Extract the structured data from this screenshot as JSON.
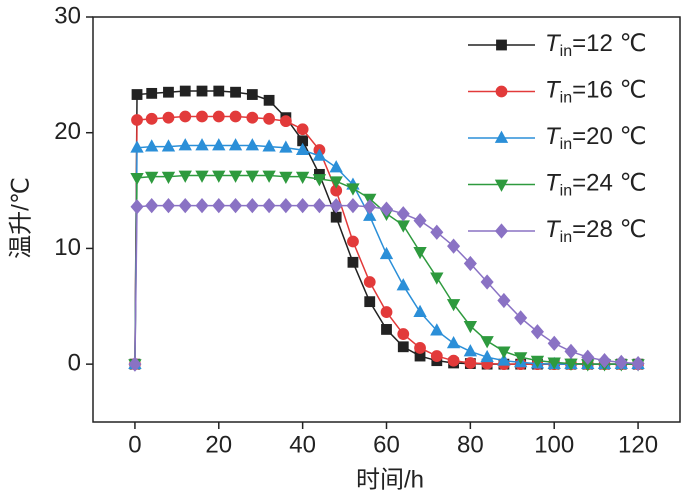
{
  "chart_data": {
    "type": "line",
    "x_label": "时间/h",
    "y_label": "温升/℃",
    "x": [
      0,
      0.5,
      4,
      8,
      12,
      16,
      20,
      24,
      28,
      32,
      36,
      40,
      44,
      48,
      52,
      56,
      60,
      64,
      68,
      72,
      76,
      80,
      84,
      88,
      92,
      96,
      100,
      104,
      108,
      112,
      116,
      120
    ],
    "series": [
      {
        "name": "Tin=12 ℃",
        "color": "#222222",
        "marker": "square",
        "values": [
          0,
          23.3,
          23.4,
          23.5,
          23.6,
          23.6,
          23.6,
          23.5,
          23.3,
          22.8,
          21.3,
          19.3,
          16.4,
          12.7,
          8.8,
          5.4,
          3.0,
          1.5,
          0.7,
          0.3,
          0.1,
          0.05,
          0,
          0,
          0,
          0,
          0,
          0,
          0,
          0,
          0,
          0
        ]
      },
      {
        "name": "Tin=16 ℃",
        "color": "#e23a3a",
        "marker": "circle",
        "values": [
          0,
          21.1,
          21.2,
          21.3,
          21.4,
          21.4,
          21.4,
          21.4,
          21.3,
          21.2,
          21.0,
          20.3,
          18.5,
          15.0,
          10.6,
          7.1,
          4.5,
          2.6,
          1.4,
          0.7,
          0.3,
          0.1,
          0.05,
          0,
          0,
          0,
          0,
          0,
          0,
          0,
          0,
          0
        ]
      },
      {
        "name": "Tin=20 ℃",
        "color": "#2b8fd8",
        "marker": "triangle-up",
        "values": [
          0,
          18.7,
          18.8,
          18.8,
          18.9,
          18.9,
          18.9,
          18.9,
          18.9,
          18.8,
          18.7,
          18.5,
          18.0,
          17.0,
          15.5,
          12.8,
          9.5,
          6.8,
          4.5,
          2.9,
          1.8,
          1.1,
          0.6,
          0.3,
          0.15,
          0.05,
          0,
          0,
          0,
          0,
          0,
          0
        ]
      },
      {
        "name": "Tin=24 ℃",
        "color": "#2e9a3e",
        "marker": "triangle-down",
        "values": [
          0,
          16.1,
          16.2,
          16.2,
          16.3,
          16.3,
          16.3,
          16.3,
          16.3,
          16.3,
          16.2,
          16.2,
          16.0,
          15.8,
          15.2,
          14.3,
          13.0,
          12.0,
          9.7,
          7.5,
          5.2,
          3.3,
          2.0,
          1.1,
          0.6,
          0.3,
          0.15,
          0.05,
          0,
          0,
          0,
          0
        ]
      },
      {
        "name": "Tin=28 ℃",
        "color": "#8a72c4",
        "marker": "diamond",
        "values": [
          0,
          13.6,
          13.7,
          13.7,
          13.7,
          13.7,
          13.7,
          13.7,
          13.7,
          13.7,
          13.7,
          13.7,
          13.7,
          13.7,
          13.7,
          13.6,
          13.4,
          13.0,
          12.4,
          11.4,
          10.2,
          8.7,
          7.1,
          5.5,
          4.0,
          2.8,
          1.8,
          1.1,
          0.6,
          0.3,
          0.15,
          0.05
        ]
      }
    ],
    "xlim": [
      -10,
      130
    ],
    "xticks": [
      0,
      20,
      40,
      60,
      80,
      100,
      120
    ],
    "ylim": [
      -5,
      30
    ],
    "yticks": [
      0,
      10,
      20,
      30
    ],
    "legend": "top-right",
    "grid": false
  }
}
